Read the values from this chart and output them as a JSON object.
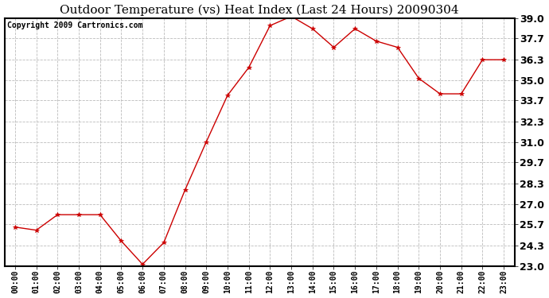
{
  "title": "Outdoor Temperature (vs) Heat Index (Last 24 Hours) 20090304",
  "copyright": "Copyright 2009 Cartronics.com",
  "x_labels": [
    "00:00",
    "01:00",
    "02:00",
    "03:00",
    "04:00",
    "05:00",
    "06:00",
    "07:00",
    "08:00",
    "09:00",
    "10:00",
    "11:00",
    "12:00",
    "13:00",
    "14:00",
    "15:00",
    "16:00",
    "17:00",
    "18:00",
    "19:00",
    "20:00",
    "21:00",
    "22:00",
    "23:00"
  ],
  "y_values": [
    25.5,
    25.3,
    26.3,
    26.3,
    26.3,
    24.6,
    23.1,
    24.5,
    27.9,
    31.0,
    34.0,
    35.8,
    38.5,
    39.1,
    38.3,
    37.1,
    38.3,
    37.5,
    37.1,
    35.1,
    34.1,
    34.1,
    36.3,
    36.3
  ],
  "line_color": "#cc0000",
  "marker": "*",
  "marker_color": "#cc0000",
  "marker_size": 4,
  "background_color": "#ffffff",
  "plot_bg_color": "#ffffff",
  "grid_color": "#bbbbbb",
  "title_fontsize": 11,
  "copyright_fontsize": 7,
  "ytick_fontsize": 9,
  "xtick_fontsize": 7,
  "y_min": 23.0,
  "y_max": 39.0,
  "y_ticks": [
    23.0,
    24.3,
    25.7,
    27.0,
    28.3,
    29.7,
    31.0,
    32.3,
    33.7,
    35.0,
    36.3,
    37.7,
    39.0
  ]
}
